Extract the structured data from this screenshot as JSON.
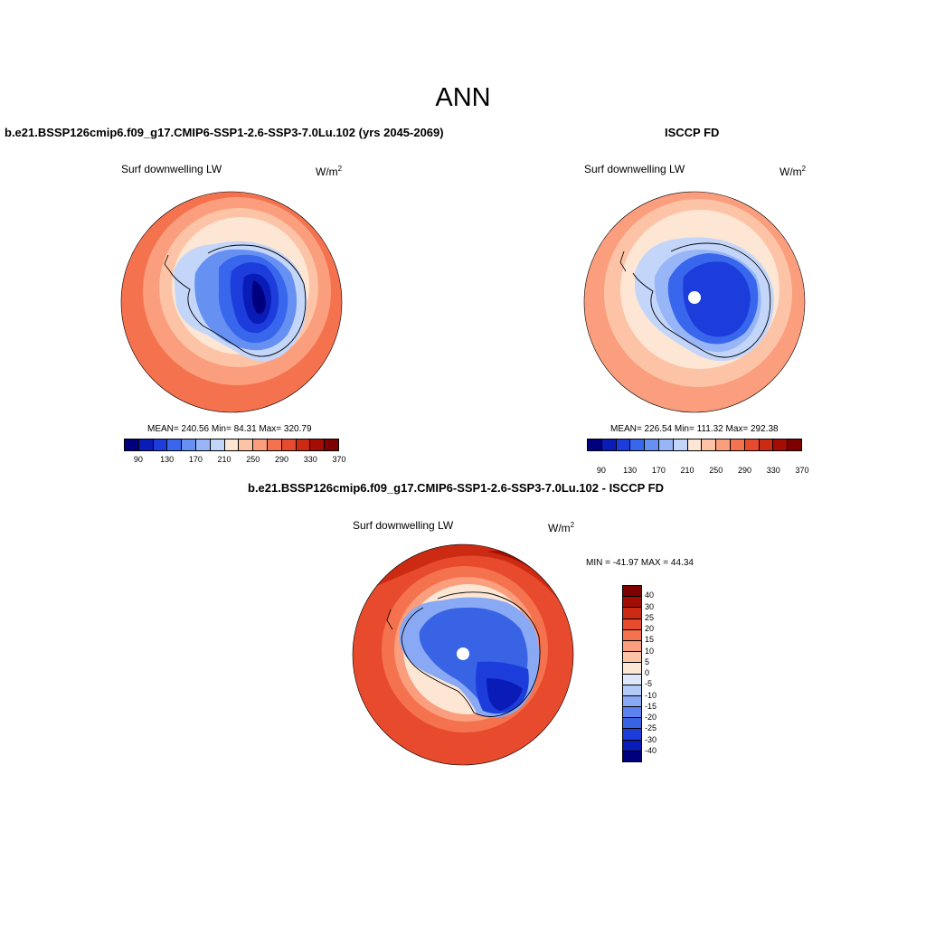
{
  "title": "ANN",
  "panels": {
    "model": {
      "title": "b.e21.BSSP126cmip6.f09_g17.CMIP6-SSP1-2.6-SSP3-7.0Lu.102 (yrs 2045-2069)",
      "variable": "Surf downwelling LW",
      "unit_base": "W/m",
      "unit_exp": "2",
      "stats": "MEAN= 240.56  Min=  84.31  Max= 320.79"
    },
    "obs": {
      "title": "ISCCP FD",
      "variable": "Surf downwelling LW",
      "unit_base": "W/m",
      "unit_exp": "2",
      "stats": "MEAN= 226.54  Min= 111.32  Max= 292.38"
    },
    "diff": {
      "title": "b.e21.BSSP126cmip6.f09_g17.CMIP6-SSP1-2.6-SSP3-7.0Lu.102 - ISCCP FD",
      "variable": "Surf downwelling LW",
      "unit_base": "W/m",
      "unit_exp": "2",
      "minmax": "MIN = -41.97 MAX =  44.34"
    }
  },
  "abs_colorbar": {
    "colors": [
      "#00007f",
      "#0a1cb7",
      "#1c3ddc",
      "#3866ec",
      "#6690f2",
      "#98b6f7",
      "#c3d6fa",
      "#fde6d4",
      "#fdc3a6",
      "#fb9e7d",
      "#f5724f",
      "#e84a2d",
      "#cc2a13",
      "#a40d04",
      "#7f0000"
    ],
    "tick_labels": [
      "90",
      "130",
      "170",
      "210",
      "250",
      "290",
      "330",
      "370"
    ]
  },
  "diff_colorbar": {
    "colors": [
      "#7f0000",
      "#a40d04",
      "#cc2a13",
      "#e84a2d",
      "#f5724f",
      "#fb9e7d",
      "#fdc3a6",
      "#fde6d4",
      "#dde9fb",
      "#b4cbf8",
      "#8aa9f4",
      "#5c83ef",
      "#3863e5",
      "#1c3ddc",
      "#0a1cb7",
      "#00007f"
    ],
    "tick_labels": [
      "40",
      "30",
      "25",
      "20",
      "15",
      "10",
      "5",
      "0",
      "-5",
      "-10",
      "-15",
      "-20",
      "-25",
      "-30",
      "-40"
    ]
  }
}
